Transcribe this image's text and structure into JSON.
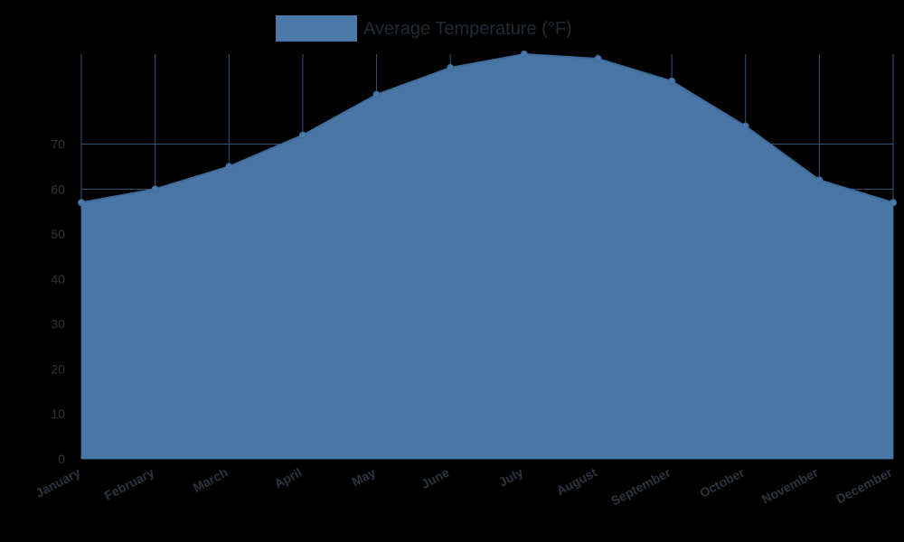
{
  "chart_data": {
    "type": "area",
    "categories": [
      "January",
      "February",
      "March",
      "April",
      "May",
      "June",
      "July",
      "August",
      "September",
      "October",
      "November",
      "December"
    ],
    "series": [
      {
        "name": "Average Temperature (°F)",
        "values": [
          57,
          60,
          65,
          72,
          81,
          87,
          90,
          89,
          84,
          74,
          62,
          57
        ],
        "color": "#4a78a8"
      }
    ],
    "ylim": [
      0,
      90
    ],
    "yticks": [
      0,
      10,
      20,
      30,
      40,
      50,
      60,
      70
    ],
    "grid": true,
    "legend": "top",
    "colors": {
      "background": "#000000",
      "area_fill": "#4a78a8",
      "line": "#3f6d9e",
      "grid": "#2f5578",
      "text": "#2b3440"
    }
  }
}
